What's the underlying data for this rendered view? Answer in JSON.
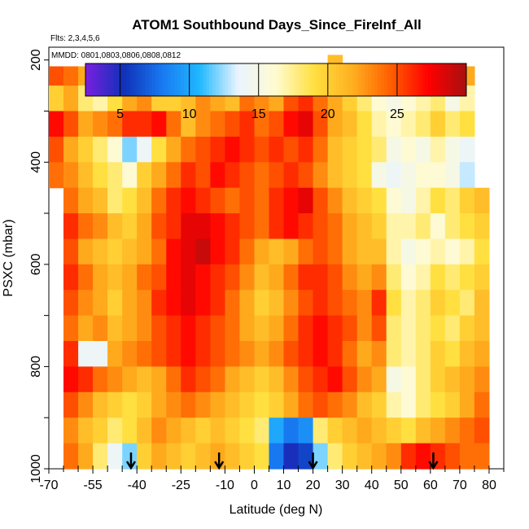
{
  "chart_data": {
    "type": "heatmap",
    "title": "ATOM1 Southbound Days_Since_FireInf_All",
    "flights_label": "Flts: 2,3,4,5,6",
    "dates_label": "MMDD: 0801,0803,0806,0808,0812",
    "xlabel": "Latitude (deg N)",
    "ylabel": "PSXC (mbar)",
    "xlim": [
      -70,
      85
    ],
    "ylim": [
      1000,
      175
    ],
    "xticks": [
      -70,
      -55,
      -40,
      -25,
      -10,
      0,
      10,
      20,
      30,
      40,
      50,
      60,
      70,
      80
    ],
    "yticks": [
      200,
      400,
      600,
      800,
      1000
    ],
    "colorbar": {
      "range": [
        2.5,
        30
      ],
      "ticks": [
        5,
        10,
        15,
        20,
        25
      ],
      "colors": [
        "#7a1fe0",
        "#1030b8",
        "#1878f0",
        "#20b8ff",
        "#eaf4ff",
        "#fffbd0",
        "#ffe040",
        "#ffb020",
        "#ff6000",
        "#ff0000",
        "#a81010"
      ]
    },
    "arrow_latitudes": [
      -42,
      -12,
      20,
      61
    ],
    "pressure_levels": [
      200,
      225,
      275,
      325,
      375,
      425,
      475,
      525,
      575,
      625,
      675,
      725,
      775,
      825,
      875,
      925,
      975
    ],
    "latitude_bins": [
      -67.5,
      -62.5,
      -57.5,
      -52.5,
      -47.5,
      -42.5,
      -37.5,
      -32.5,
      -27.5,
      -22.5,
      -17.5,
      -12.5,
      -7.5,
      -2.5,
      2.5,
      7.5,
      12.5,
      17.5,
      22.5,
      27.5,
      32.5,
      37.5,
      42.5,
      47.5,
      52.5,
      57.5,
      62.5,
      67.5,
      72.5,
      77.5
    ],
    "values": [
      [
        null,
        null,
        null,
        null,
        null,
        null,
        null,
        null,
        null,
        null,
        null,
        null,
        null,
        null,
        null,
        null,
        null,
        null,
        null,
        21,
        null,
        null,
        null,
        null,
        null,
        null,
        null,
        null,
        null,
        null
      ],
      [
        25,
        24,
        22,
        23,
        24,
        25,
        24,
        23,
        22,
        24,
        25,
        23,
        22,
        24,
        26,
        25,
        24,
        23,
        22,
        20,
        21,
        19,
        17,
        16,
        15,
        17,
        18,
        19,
        22,
        null
      ],
      [
        20,
        22,
        18,
        17,
        19,
        22,
        23,
        20,
        20,
        21,
        23,
        22,
        21,
        24,
        23,
        22,
        25,
        26,
        24,
        22,
        20,
        18,
        16,
        15,
        16,
        17,
        18,
        15,
        17,
        null
      ],
      [
        27,
        25,
        22,
        23,
        24,
        26,
        26,
        27,
        24,
        21,
        23,
        24,
        25,
        26,
        24,
        25,
        27,
        28,
        25,
        22,
        21,
        19,
        17,
        16,
        17,
        18,
        20,
        18,
        19,
        null
      ],
      [
        25,
        22,
        20,
        18,
        16,
        12,
        14,
        19,
        22,
        24,
        25,
        26,
        27,
        26,
        25,
        26,
        25,
        26,
        24,
        21,
        20,
        19,
        18,
        15,
        16,
        15,
        17,
        15,
        14,
        null
      ],
      [
        24,
        23,
        21,
        19,
        18,
        16,
        20,
        22,
        24,
        26,
        25,
        27,
        26,
        25,
        24,
        25,
        26,
        25,
        23,
        21,
        20,
        19,
        15,
        14,
        15,
        16,
        16,
        15,
        13,
        null
      ],
      [
        null,
        24,
        22,
        21,
        18,
        19,
        21,
        24,
        26,
        27,
        26,
        25,
        24,
        25,
        24,
        26,
        27,
        28,
        25,
        23,
        21,
        20,
        19,
        16,
        15,
        17,
        19,
        18,
        20,
        21
      ],
      [
        null,
        26,
        24,
        23,
        21,
        20,
        22,
        25,
        26,
        28,
        28,
        27,
        26,
        25,
        24,
        26,
        27,
        26,
        25,
        24,
        22,
        21,
        20,
        17,
        17,
        18,
        16,
        18,
        19,
        20
      ],
      [
        null,
        25,
        22,
        21,
        20,
        21,
        22,
        24,
        27,
        28,
        29,
        27,
        26,
        24,
        22,
        21,
        22,
        24,
        25,
        24,
        22,
        21,
        21,
        17,
        15,
        16,
        17,
        16,
        17,
        19
      ],
      [
        null,
        26,
        24,
        22,
        21,
        22,
        24,
        25,
        27,
        28,
        27,
        26,
        25,
        23,
        21,
        22,
        24,
        26,
        26,
        25,
        23,
        22,
        23,
        18,
        16,
        17,
        19,
        18,
        19,
        20
      ],
      [
        null,
        25,
        23,
        22,
        20,
        22,
        23,
        26,
        27,
        28,
        27,
        26,
        24,
        22,
        20,
        21,
        23,
        25,
        26,
        25,
        24,
        23,
        26,
        19,
        17,
        18,
        20,
        19,
        18,
        21
      ],
      [
        null,
        24,
        22,
        23,
        21,
        22,
        23,
        25,
        26,
        27,
        26,
        25,
        24,
        22,
        21,
        22,
        24,
        26,
        27,
        26,
        25,
        23,
        25,
        18,
        17,
        18,
        19,
        18,
        20,
        21
      ],
      [
        null,
        26,
        14,
        14,
        22,
        23,
        24,
        25,
        26,
        27,
        26,
        25,
        24,
        23,
        22,
        23,
        25,
        26,
        27,
        26,
        24,
        22,
        23,
        18,
        17,
        18,
        20,
        19,
        21,
        22
      ],
      [
        null,
        27,
        26,
        24,
        23,
        22,
        21,
        22,
        24,
        26,
        25,
        24,
        22,
        21,
        20,
        21,
        23,
        25,
        26,
        27,
        25,
        23,
        22,
        15,
        16,
        18,
        20,
        21,
        22,
        23
      ],
      [
        null,
        25,
        23,
        21,
        20,
        19,
        20,
        22,
        23,
        24,
        23,
        22,
        21,
        20,
        19,
        20,
        22,
        24,
        25,
        24,
        23,
        21,
        20,
        17,
        16,
        18,
        19,
        20,
        22,
        24
      ],
      [
        null,
        23,
        21,
        20,
        18,
        19,
        21,
        23,
        22,
        21,
        20,
        21,
        20,
        19,
        18,
        10,
        8,
        9,
        18,
        20,
        21,
        22,
        21,
        20,
        19,
        21,
        22,
        23,
        24,
        25
      ],
      [
        null,
        24,
        22,
        18,
        14,
        12,
        20,
        22,
        21,
        20,
        21,
        22,
        21,
        20,
        19,
        8,
        5,
        6,
        12,
        18,
        20,
        21,
        22,
        23,
        26,
        27,
        26,
        25,
        24,
        24
      ]
    ]
  }
}
